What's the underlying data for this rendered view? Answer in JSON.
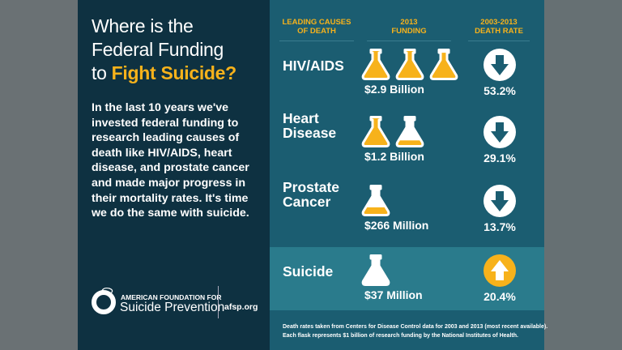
{
  "left": {
    "title_line1": "Where is the",
    "title_line2": "Federal Funding",
    "title_line3_plain": "to ",
    "title_line3_highlight": "Fight Suicide?",
    "body": "In the last 10 years we've invested federal funding to research leading causes of death like HIV/AIDS, heart disease, and prostate cancer and made major progress in their mortality rates. It's time we do the same with suicide.",
    "logo_top": "AMERICAN FOUNDATION FOR",
    "logo_bottom": "Suicide Prevention",
    "website": "afsp.org"
  },
  "headers": {
    "cause": [
      "LEADING CAUSES",
      "OF DEATH"
    ],
    "funding": [
      "2013",
      "FUNDING"
    ],
    "rate": [
      "2003-2013",
      "DEATH RATE"
    ]
  },
  "rows": [
    {
      "cause": [
        "HIV/AIDS"
      ],
      "funding_label": "$2.9 Billion",
      "funding_billions": 2.9,
      "rate_label": "53.2%",
      "direction": "down"
    },
    {
      "cause": [
        "Heart",
        "Disease"
      ],
      "funding_label": "$1.2 Billion",
      "funding_billions": 1.2,
      "rate_label": "29.1%",
      "direction": "down"
    },
    {
      "cause": [
        "Prostate",
        "Cancer"
      ],
      "funding_label": "$266 Million",
      "funding_billions": 0.266,
      "rate_label": "13.7%",
      "direction": "down"
    },
    {
      "cause": [
        "Suicide"
      ],
      "funding_label": "$37 Million",
      "funding_billions": 0.037,
      "rate_label": "20.4%",
      "direction": "up"
    }
  ],
  "footnote": [
    "Death rates taken from Centers for Disease Control data for 2003 and 2013 (most recent available).",
    "Each flask represents $1 billion of research funding by the National Institutes of Health."
  ],
  "colors": {
    "accent": "#f7b21b",
    "left_panel": "#0e3141",
    "right_panel": "#1b5d71",
    "highlight_row": "#2a7b8c"
  }
}
